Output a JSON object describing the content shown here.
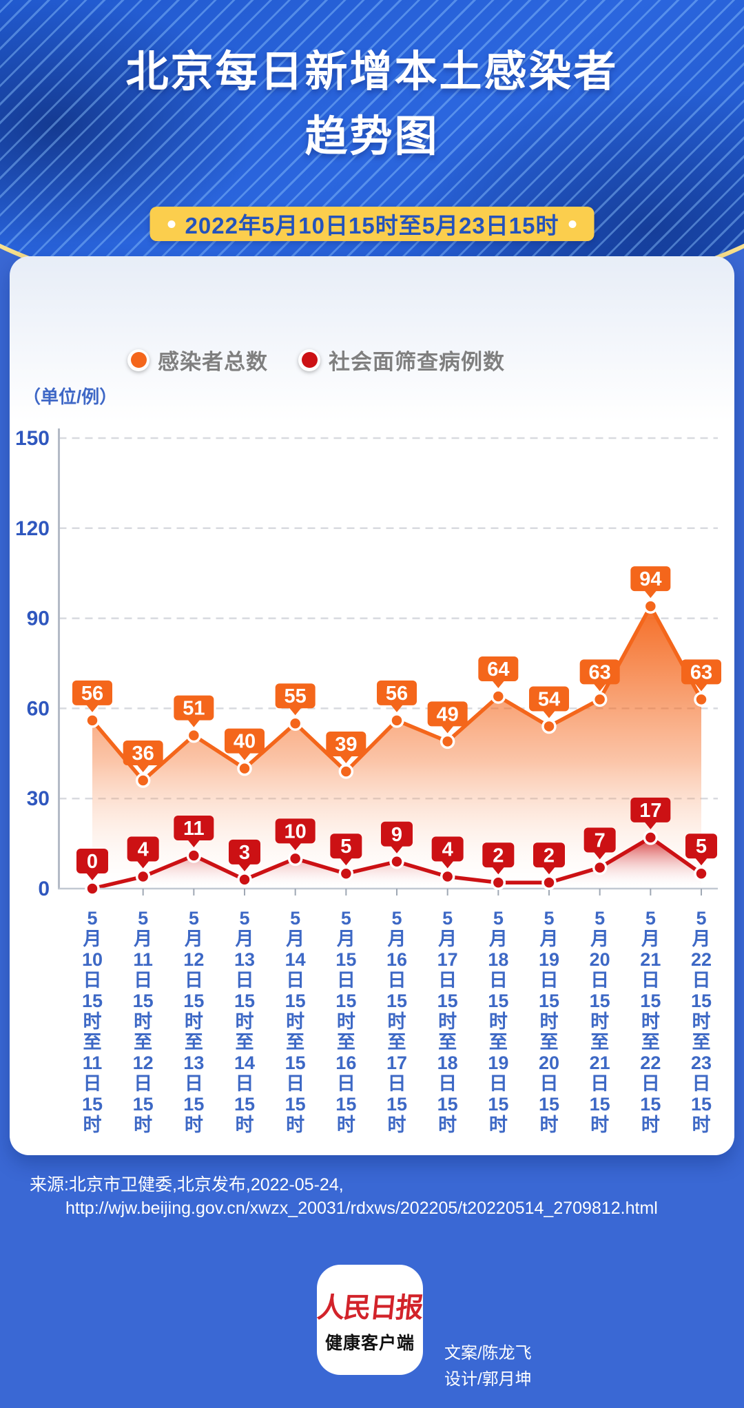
{
  "header": {
    "title_line1": "北京每日新增本土感染者",
    "title_line2": "趋势图",
    "date_range": "2022年5月10日15时至5月23日15时"
  },
  "legend": [
    {
      "label": "感染者总数",
      "color": "#F4661B"
    },
    {
      "label": "社会面筛查病例数",
      "color": "#CC1114"
    }
  ],
  "chart_data": {
    "type": "line",
    "unit_label": "（单位/例）",
    "ylim": [
      0,
      150
    ],
    "y_ticks": [
      0,
      30,
      60,
      90,
      120,
      150
    ],
    "grid": "horizontal dashed",
    "legend_position": "top",
    "categories": [
      "5月10日15时至11日15时",
      "5月11日15时至12日15时",
      "5月12日15时至13日15时",
      "5月13日15时至14日15时",
      "5月14日15时至15日15时",
      "5月15日15时至16日15时",
      "5月16日15时至17日15时",
      "5月17日15时至18日15时",
      "5月18日15时至19日15时",
      "5月19日15时至20日15时",
      "5月20日15时至21日15时",
      "5月21日15时至22日15时",
      "5月22日15时至23日15时"
    ],
    "series": [
      {
        "name": "感染者总数",
        "color": "#F4661B",
        "values": [
          56,
          36,
          51,
          40,
          55,
          39,
          56,
          49,
          64,
          54,
          63,
          94,
          63
        ]
      },
      {
        "name": "社会面筛查病例数",
        "color": "#CC1114",
        "values": [
          0,
          4,
          11,
          3,
          10,
          5,
          9,
          4,
          2,
          2,
          7,
          17,
          5
        ]
      }
    ]
  },
  "source": {
    "line1": "来源:北京市卫健委,北京发布,2022-05-24,",
    "line2": "http://wjw.beijing.gov.cn/xwzx_20031/rdxws/202205/t20220514_2709812.html"
  },
  "footer": {
    "logo_line1": "人民日报",
    "logo_line2": "健康客户端",
    "credit_line1": "文案/陈龙飞",
    "credit_line2": "设计/郭月坤"
  }
}
